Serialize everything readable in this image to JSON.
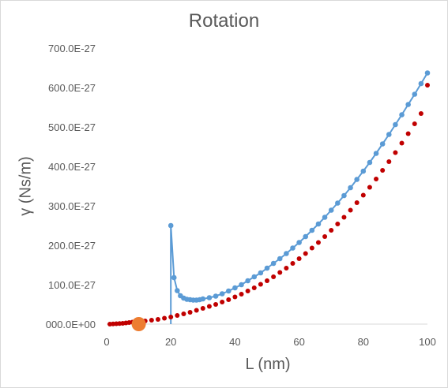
{
  "chart_data": {
    "type": "scatter",
    "title": "Rotation",
    "xlabel": "L (nm)",
    "ylabel": "γ (Ns/m)",
    "xlim": [
      0,
      100
    ],
    "ylim": [
      0,
      7e-25
    ],
    "x_ticks": [
      0,
      20,
      40,
      60,
      80,
      100
    ],
    "x_tick_labels": [
      "0",
      "20",
      "40",
      "60",
      "80",
      "100"
    ],
    "y_ticks": [
      0,
      1e-25,
      2e-25,
      3e-25,
      4e-25,
      5e-25,
      6e-25,
      7e-25
    ],
    "y_tick_labels": [
      "000.0E+00",
      "100.0E-27",
      "200.0E-27",
      "300.0E-27",
      "400.0E-27",
      "500.0E-27",
      "600.0E-27",
      "700.0E-27"
    ],
    "grid": false,
    "series": [
      {
        "style": "line-markers",
        "color": "#5b9bd5",
        "points": [
          [
            20,
            0
          ],
          [
            20,
            2.5e-25
          ],
          [
            21,
            1.18e-25
          ],
          [
            22,
            8.5e-26
          ],
          [
            23,
            7.2e-26
          ],
          [
            24,
            6.6e-26
          ],
          [
            25,
            6.3e-26
          ],
          [
            26,
            6.2e-26
          ],
          [
            27,
            6.1e-26
          ],
          [
            28,
            6.1e-26
          ],
          [
            29,
            6.2e-26
          ],
          [
            30,
            6.4e-26
          ],
          [
            32,
            6.7e-26
          ],
          [
            34,
            7.1e-26
          ],
          [
            36,
            7.7e-26
          ],
          [
            38,
            8.4e-26
          ],
          [
            40,
            9.2e-26
          ],
          [
            42,
            1e-25
          ],
          [
            44,
            1.1e-25
          ],
          [
            46,
            1.2e-25
          ],
          [
            48,
            1.3e-25
          ],
          [
            50,
            1.42e-25
          ],
          [
            52,
            1.54e-25
          ],
          [
            54,
            1.66e-25
          ],
          [
            56,
            1.79e-25
          ],
          [
            58,
            1.93e-25
          ],
          [
            60,
            2.07e-25
          ],
          [
            62,
            2.22e-25
          ],
          [
            64,
            2.38e-25
          ],
          [
            66,
            2.54e-25
          ],
          [
            68,
            2.71e-25
          ],
          [
            70,
            2.89e-25
          ],
          [
            72,
            3.07e-25
          ],
          [
            74,
            3.26e-25
          ],
          [
            76,
            3.46e-25
          ],
          [
            78,
            3.67e-25
          ],
          [
            80,
            3.88e-25
          ],
          [
            82,
            4.1e-25
          ],
          [
            84,
            4.33e-25
          ],
          [
            86,
            4.57e-25
          ],
          [
            88,
            4.81e-25
          ],
          [
            90,
            5.06e-25
          ],
          [
            92,
            5.31e-25
          ],
          [
            94,
            5.57e-25
          ],
          [
            96,
            5.83e-25
          ],
          [
            98,
            6.1e-25
          ],
          [
            100,
            6.37e-25
          ]
        ]
      },
      {
        "style": "markers",
        "color": "#c00000",
        "points": [
          [
            1,
            0
          ],
          [
            2,
            5e-28
          ],
          [
            3,
            1e-27
          ],
          [
            4,
            1.5e-27
          ],
          [
            5,
            2e-27
          ],
          [
            6,
            3e-27
          ],
          [
            7,
            4e-27
          ],
          [
            8,
            5e-27
          ],
          [
            10,
            6e-27
          ],
          [
            12,
            8e-27
          ],
          [
            14,
            1e-26
          ],
          [
            16,
            1.2e-26
          ],
          [
            18,
            1.5e-26
          ],
          [
            20,
            1.8e-26
          ],
          [
            22,
            2.2e-26
          ],
          [
            24,
            2.6e-26
          ],
          [
            26,
            3e-26
          ],
          [
            28,
            3.5e-26
          ],
          [
            30,
            4e-26
          ],
          [
            32,
            4.5e-26
          ],
          [
            34,
            5e-26
          ],
          [
            36,
            5.6e-26
          ],
          [
            38,
            6.2e-26
          ],
          [
            40,
            6.9e-26
          ],
          [
            42,
            7.6e-26
          ],
          [
            44,
            8.4e-26
          ],
          [
            46,
            9.2e-26
          ],
          [
            48,
            1.01e-25
          ],
          [
            50,
            1.1e-25
          ],
          [
            52,
            1.2e-25
          ],
          [
            54,
            1.31e-25
          ],
          [
            56,
            1.42e-25
          ],
          [
            58,
            1.54e-25
          ],
          [
            60,
            1.66e-25
          ],
          [
            62,
            1.79e-25
          ],
          [
            64,
            1.93e-25
          ],
          [
            66,
            2.07e-25
          ],
          [
            68,
            2.22e-25
          ],
          [
            70,
            2.38e-25
          ],
          [
            72,
            2.54e-25
          ],
          [
            74,
            2.71e-25
          ],
          [
            76,
            2.89e-25
          ],
          [
            78,
            3.08e-25
          ],
          [
            80,
            3.27e-25
          ],
          [
            82,
            3.47e-25
          ],
          [
            84,
            3.68e-25
          ],
          [
            86,
            3.9e-25
          ],
          [
            88,
            4.12e-25
          ],
          [
            90,
            4.35e-25
          ],
          [
            92,
            4.59e-25
          ],
          [
            94,
            4.83e-25
          ],
          [
            96,
            5.08e-25
          ],
          [
            98,
            5.34e-25
          ],
          [
            100,
            6.06e-25
          ]
        ]
      },
      {
        "style": "big-marker",
        "color": "#ed7d31",
        "points": [
          [
            10,
            0
          ]
        ]
      }
    ]
  }
}
